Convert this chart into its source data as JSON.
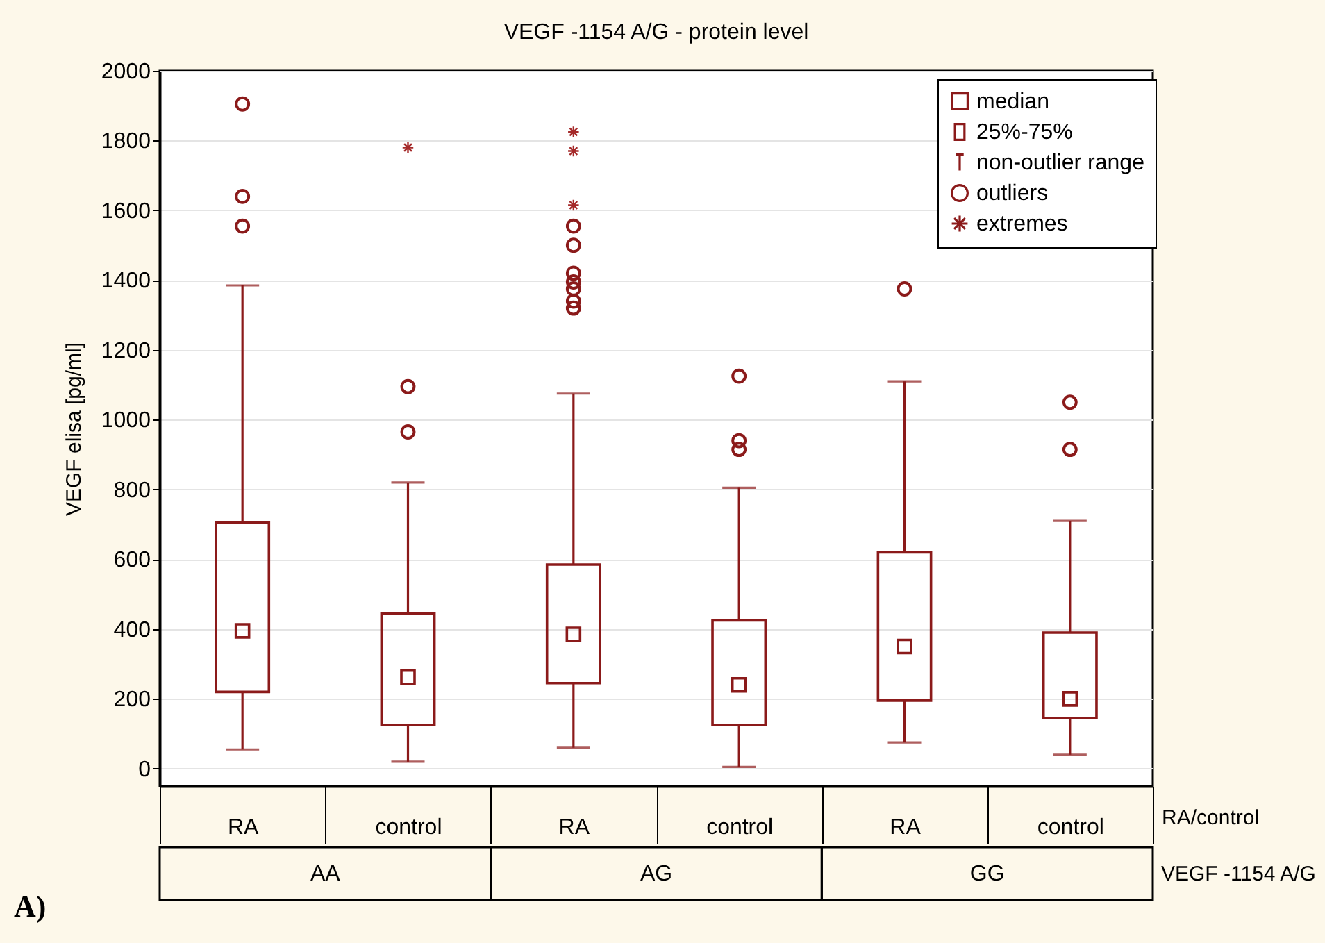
{
  "chart_data": {
    "type": "box",
    "title": "VEGF -1154 A/G - protein level",
    "ylabel": "VEGF elisa [pg/ml]",
    "categories": [
      "RA",
      "control",
      "RA",
      "control",
      "RA",
      "control"
    ],
    "ylim": [
      -50,
      2000
    ],
    "yticks": [
      0,
      200,
      400,
      600,
      800,
      1000,
      1200,
      1400,
      1600,
      1800,
      2000
    ],
    "grid": "y",
    "legend": "top right",
    "series": [
      {
        "color": "#8b1a1a",
        "boxes": [
          {
            "low": 55,
            "q1": 220,
            "median": 395,
            "q3": 705,
            "high": 1385,
            "outliers": [
              1555,
              1640,
              1905
            ]
          },
          {
            "low": 20,
            "q1": 125,
            "median": 262,
            "q3": 445,
            "high": 820,
            "outliers": [
              965,
              1095
            ]
          },
          {
            "low": 60,
            "q1": 245,
            "median": 385,
            "q3": 585,
            "high": 1075,
            "outliers": [
              1320,
              1340,
              1375,
              1395,
              1420,
              1500,
              1555
            ]
          },
          {
            "low": 5,
            "q1": 125,
            "median": 240,
            "q3": 425,
            "high": 805,
            "outliers": [
              915,
              940,
              1125
            ]
          },
          {
            "low": 75,
            "q1": 195,
            "median": 350,
            "q3": 620,
            "high": 1110,
            "outliers": [
              1375
            ]
          },
          {
            "low": 40,
            "q1": 145,
            "median": 200,
            "q3": 390,
            "high": 710,
            "outliers": [
              915,
              1050
            ]
          }
        ]
      },
      {
        "type": "scatter",
        "name": "extremes",
        "marker": "cross",
        "color": "#a52a2a",
        "values": [
          null,
          1780,
          1825,
          null,
          null,
          null
        ]
      },
      {
        "type": "scatter",
        "marker": "cross",
        "color": "#a52a2a",
        "values": [
          null,
          null,
          1770,
          null,
          null,
          null
        ]
      },
      {
        "type": "scatter",
        "marker": "cross",
        "color": "#a52a2a",
        "values": [
          null,
          null,
          1615,
          null,
          null,
          null
        ]
      }
    ],
    "annotations": [
      "median",
      "25%-75%",
      "non-outlier range",
      "outliers",
      "RA/control",
      "AA",
      "AG",
      "GG",
      "VEGF -1154 A/G",
      "A)"
    ]
  }
}
